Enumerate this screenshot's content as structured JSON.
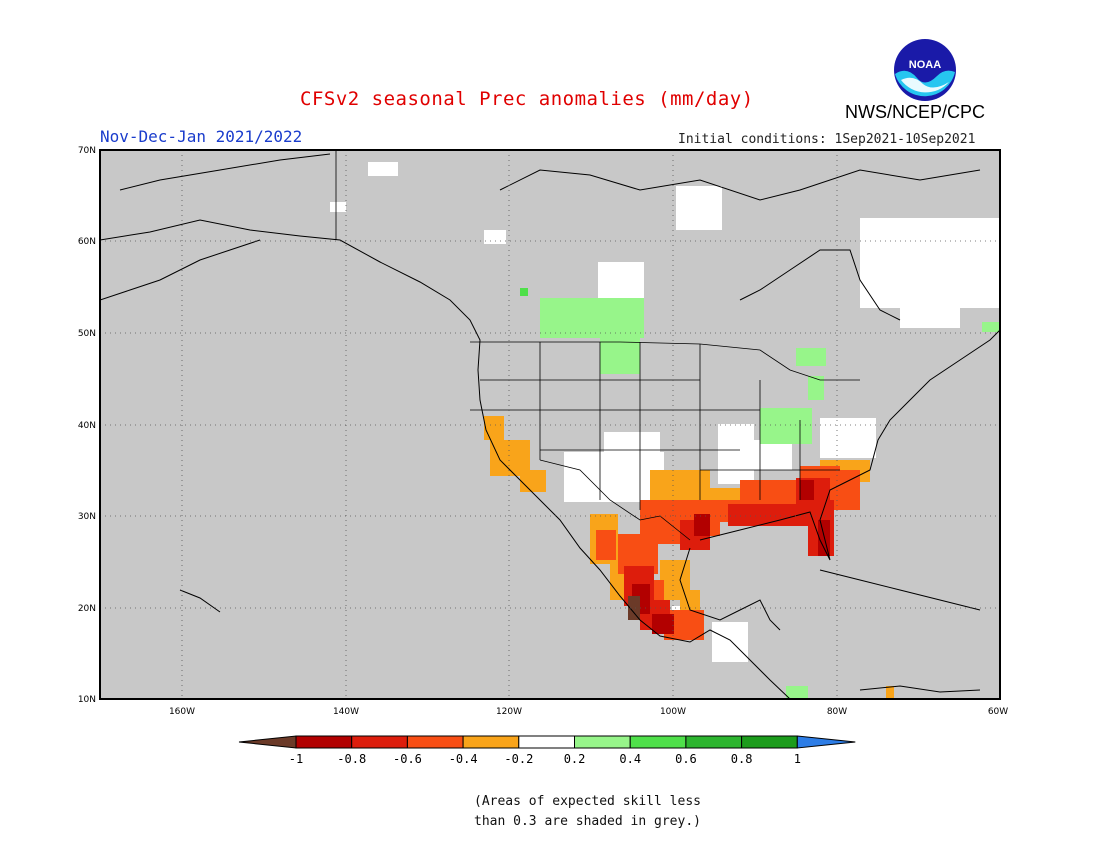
{
  "header": {
    "title": "CFSv2 seasonal Prec anomalies (mm/day)",
    "period": "Nov-Dec-Jan 2021/2022",
    "initial_conditions": "Initial conditions: 1Sep2021-10Sep2021",
    "agency": "NWS/NCEP/CPC",
    "logo_text": "NOAA"
  },
  "map": {
    "projection": "lat-lon",
    "lon_range": [
      "170W",
      "60W"
    ],
    "lat_range": [
      "10N",
      "70N"
    ],
    "lat_ticks": [
      "70N",
      "60N",
      "50N",
      "40N",
      "30N",
      "20N",
      "10N"
    ],
    "lon_ticks": [
      "160W",
      "140W",
      "120W",
      "100W",
      "80W",
      "60W"
    ],
    "grid": "dotted",
    "background_color": "#c8c8c8"
  },
  "colorbar": {
    "labels": [
      "-1",
      "-0.8",
      "-0.6",
      "-0.4",
      "-0.2",
      "0.2",
      "0.4",
      "0.6",
      "0.8",
      "1"
    ],
    "colors": [
      "#6b3a28",
      "#b20000",
      "#dd1d0c",
      "#f84e14",
      "#f9a41a",
      "#ffffff",
      "#97f58a",
      "#4fe04a",
      "#2db52f",
      "#1c9c1c",
      "#2d7de6"
    ]
  },
  "note": {
    "line1": "(Areas of expected skill less",
    "line2": "than 0.3 are shaded in grey.)"
  }
}
